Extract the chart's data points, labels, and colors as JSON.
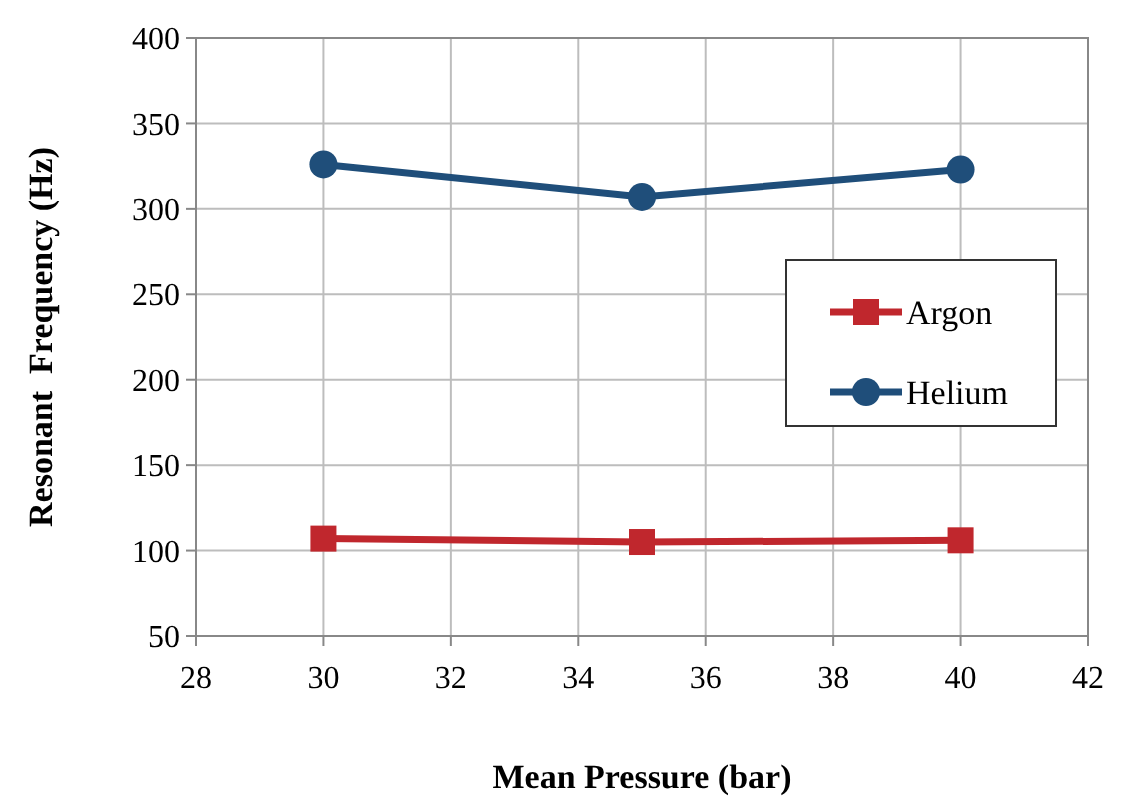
{
  "chart_data": {
    "type": "line",
    "xlabel": "Mean Pressure (bar)",
    "ylabel": "Resonant  Frequency (Hz)",
    "x": [
      30,
      35,
      40
    ],
    "series": [
      {
        "name": "Argon",
        "color": "#c0272d",
        "values": [
          107,
          105,
          106
        ],
        "marker": "square"
      },
      {
        "name": "Helium",
        "color": "#1f4e7a",
        "values": [
          326,
          307,
          323
        ],
        "marker": "circle"
      }
    ],
    "xlim": [
      28,
      42
    ],
    "xticks": [
      28,
      30,
      32,
      34,
      36,
      38,
      40,
      42
    ],
    "ylim": [
      50,
      400
    ],
    "yticks": [
      50,
      100,
      150,
      200,
      250,
      300,
      350,
      400
    ],
    "grid": true,
    "legend": "right",
    "line_style": "solid"
  }
}
